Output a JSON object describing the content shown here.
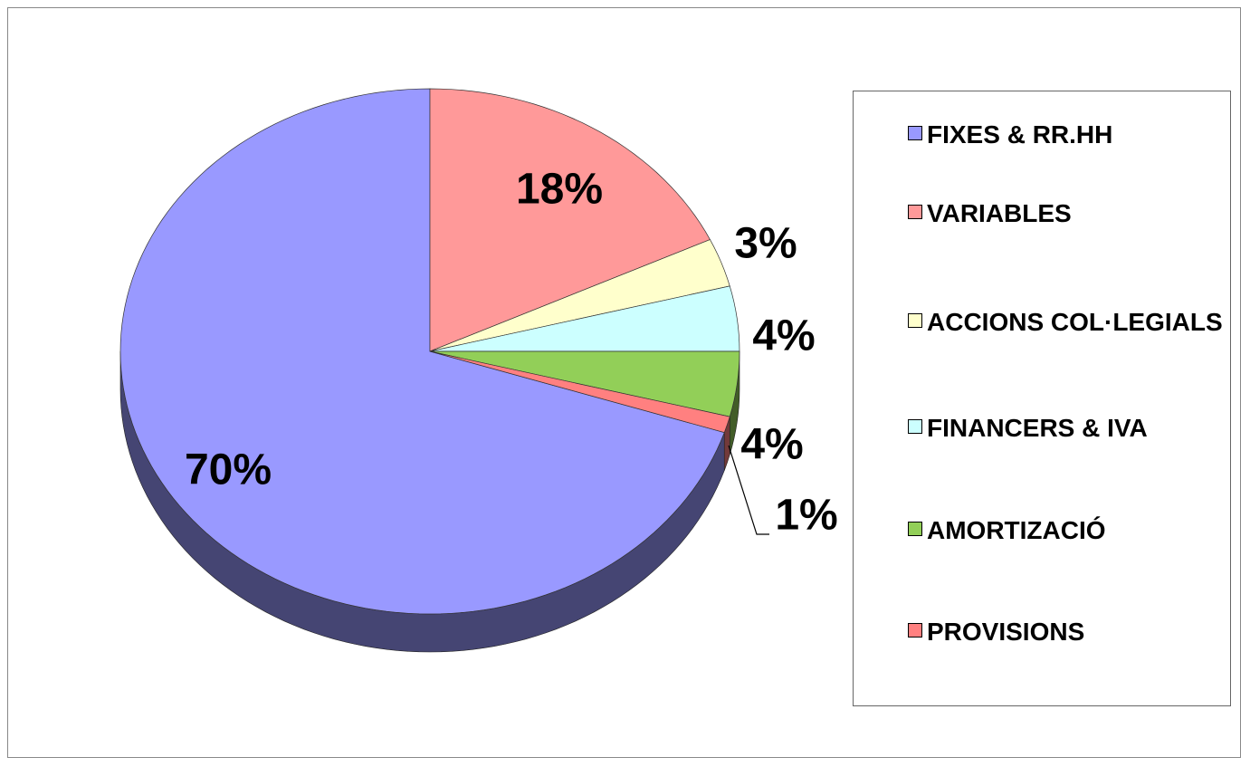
{
  "chart_data": {
    "type": "pie",
    "categories": [
      "FIXES & RR.HH",
      "VARIABLES",
      "ACCIONS COL·LEGIALS",
      "FINANCERS & IVA",
      "AMORTIZACIÓ",
      "PROVISIONS"
    ],
    "values": [
      70,
      18,
      3,
      4,
      4,
      1
    ],
    "value_labels": [
      "70%",
      "18%",
      "3%",
      "4%",
      "4%",
      "1%"
    ],
    "colors": [
      "#9999ff",
      "#ff9999",
      "#ffffcc",
      "#ccffff",
      "#92cf58",
      "#ff8080"
    ],
    "legend": "right"
  }
}
